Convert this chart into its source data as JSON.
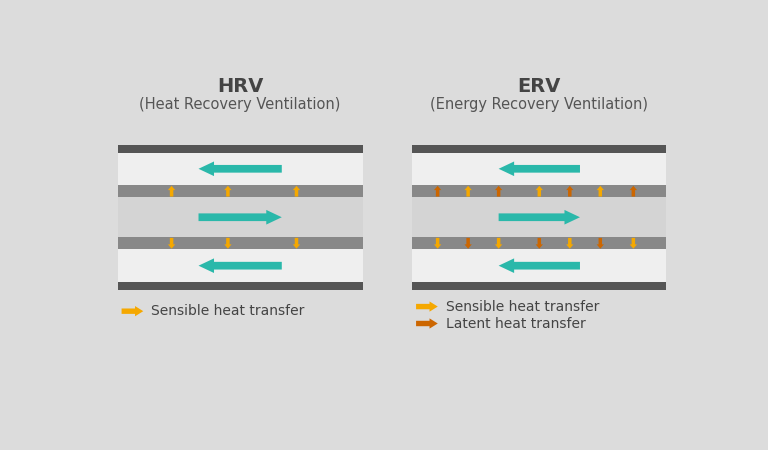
{
  "bg_color": "#dcdcdc",
  "panel_bg": "#efefef",
  "outer_band_color": "#555555",
  "inner_band_color": "#888888",
  "center_bg": "#d4d4d4",
  "hrv_title": "HRV",
  "hrv_subtitle": "(Heat Recovery Ventilation)",
  "erv_title": "ERV",
  "erv_subtitle": "(Energy Recovery Ventilation)",
  "teal_color": "#2ab8aa",
  "yellow_color": "#f5a800",
  "orange_color": "#cc6600",
  "legend_sensible": "Sensible heat transfer",
  "legend_latent": "Latent heat transfer",
  "title_fontsize": 14,
  "subtitle_fontsize": 10.5,
  "legend_fontsize": 10
}
